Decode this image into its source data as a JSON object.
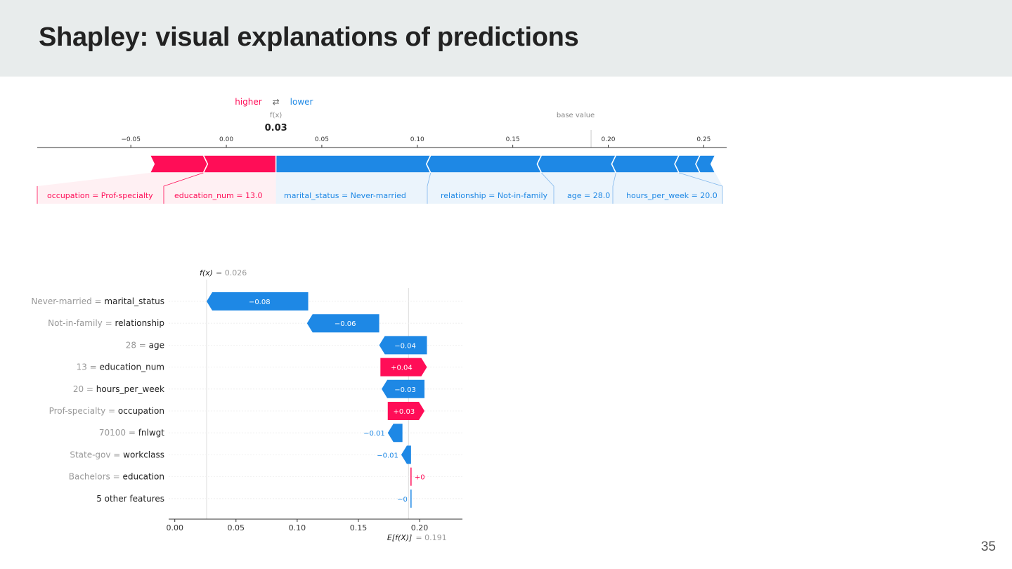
{
  "slide": {
    "title": "Shapley: visual explanations of predictions",
    "page_number": "35"
  },
  "colors": {
    "positive": "#ff0d57",
    "negative": "#1e88e5",
    "axis": "#333333",
    "muted": "#999999"
  },
  "chart_data": [
    {
      "type": "force",
      "legend": {
        "higher": "higher",
        "arrow": "⇄",
        "lower": "lower"
      },
      "fx_label": "f(x)",
      "fx_value": "0.03",
      "output_value": 0.026,
      "base_value_label": "base value",
      "base_value": 0.191,
      "xticks": [
        -0.05,
        0.0,
        0.05,
        0.1,
        0.15,
        0.2,
        0.25
      ],
      "xtick_labels": [
        "−0.05",
        "0.00",
        "0.05",
        "0.10",
        "0.15",
        "0.20",
        "0.25"
      ],
      "xlim": [
        -0.099,
        0.262
      ],
      "positive_features": [
        {
          "label": "occupation = Prof-specialty",
          "start": -0.04,
          "end": -0.012
        },
        {
          "label": "education_num = 13.0",
          "start": -0.012,
          "end": 0.026
        }
      ],
      "negative_features": [
        {
          "label": "marital_status = Never-married",
          "start": 0.026,
          "end": 0.107
        },
        {
          "label": "relationship = Not-in-family",
          "start": 0.107,
          "end": 0.165
        },
        {
          "label": "age = 28.0",
          "start": 0.165,
          "end": 0.204
        },
        {
          "label": "hours_per_week = 20.0",
          "start": 0.204,
          "end": 0.237
        },
        {
          "label": "",
          "start": 0.237,
          "end": 0.248
        },
        {
          "label": "",
          "start": 0.248,
          "end": 0.256
        }
      ]
    },
    {
      "type": "waterfall",
      "fx_label": "f(x)",
      "fx_value_text": "= 0.026",
      "fx_value": 0.026,
      "efx_label": "E[f(X)]",
      "efx_value_text": "= 0.191",
      "efx_value": 0.191,
      "xticks": [
        0.0,
        0.05,
        0.1,
        0.15,
        0.2
      ],
      "xtick_labels": [
        "0.00",
        "0.05",
        "0.10",
        "0.15",
        "0.20"
      ],
      "xlim": [
        -0.005,
        0.235
      ],
      "rows": [
        {
          "value_text": "Never-married",
          "feature": "marital_status",
          "left": 0.026,
          "right": 0.109,
          "sign": "neg",
          "label": "−0.08"
        },
        {
          "value_text": "Not-in-family",
          "feature": "relationship",
          "left": 0.108,
          "right": 0.167,
          "sign": "neg",
          "label": "−0.06"
        },
        {
          "value_text": "28",
          "feature": "age",
          "left": 0.167,
          "right": 0.206,
          "sign": "neg",
          "label": "−0.04"
        },
        {
          "value_text": "13",
          "feature": "education_num",
          "left": 0.168,
          "right": 0.206,
          "sign": "pos",
          "label": "+0.04"
        },
        {
          "value_text": "20",
          "feature": "hours_per_week",
          "left": 0.169,
          "right": 0.204,
          "sign": "neg",
          "label": "−0.03"
        },
        {
          "value_text": "Prof-specialty",
          "feature": "occupation",
          "left": 0.174,
          "right": 0.204,
          "sign": "pos",
          "label": "+0.03"
        },
        {
          "value_text": "70100",
          "feature": "fnlwgt",
          "left": 0.174,
          "right": 0.186,
          "sign": "neg",
          "label": "−0.01"
        },
        {
          "value_text": "State-gov",
          "feature": "workclass",
          "left": 0.185,
          "right": 0.193,
          "sign": "neg",
          "label": "−0.01"
        },
        {
          "value_text": "Bachelors",
          "feature": "education",
          "left": 0.1925,
          "right": 0.1935,
          "sign": "pos",
          "label": "+0"
        },
        {
          "value_text": "",
          "feature": "5 other features",
          "left": 0.1925,
          "right": 0.1935,
          "sign": "neg",
          "label": "−0"
        }
      ]
    }
  ]
}
